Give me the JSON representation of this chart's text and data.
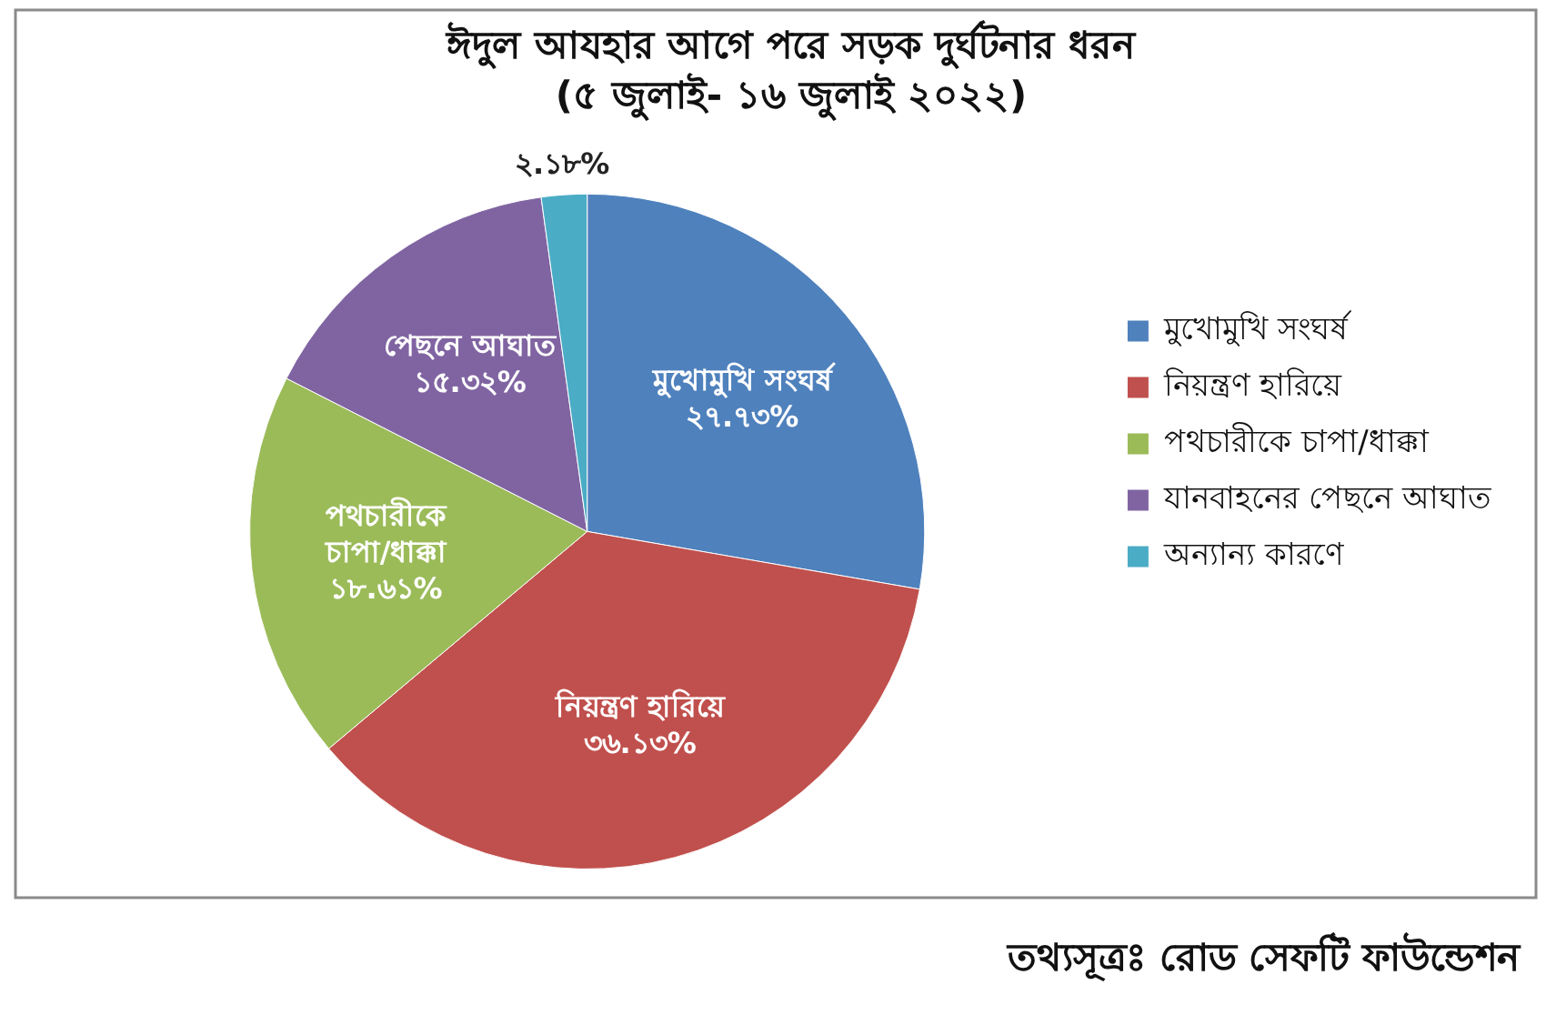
{
  "chart_data": {
    "type": "pie",
    "title": "ঈদুল আযহার আগে পরে সড়ক দুর্ঘটনার ধরন",
    "subtitle": "(৫ জুলাই- ১৬ জুলাই ২০২২)",
    "categories": [
      "মুখোমুখি সংঘর্ষ",
      "নিয়ন্ত্রণ হারিয়ে",
      "পথচারীকে চাপা/ধাক্কা",
      "যানবাহনের পেছনে আঘাত",
      "অন্যান্য কারণে"
    ],
    "values": [
      27.73,
      36.13,
      18.61,
      15.32,
      2.18
    ],
    "colors": [
      "#4f81bd",
      "#c0504d",
      "#9bbb59",
      "#8064a2",
      "#4bacc6"
    ],
    "value_labels": [
      "মুখোমুখি সংঘর্ষ\n২৭.৭৩%",
      "নিয়ন্ত্রণ হারিয়ে\n৩৬.১৩%",
      "পথচারীকে\nচাপা/ধাক্কা\n১৮.৬১%",
      "পেছনে আঘাত\n১৫.৩২%",
      "২.১৮%"
    ],
    "legend": "right",
    "annotations": [
      "তথ্যসূত্রঃ রোড সেফটি ফাউন্ডেশন"
    ]
  }
}
